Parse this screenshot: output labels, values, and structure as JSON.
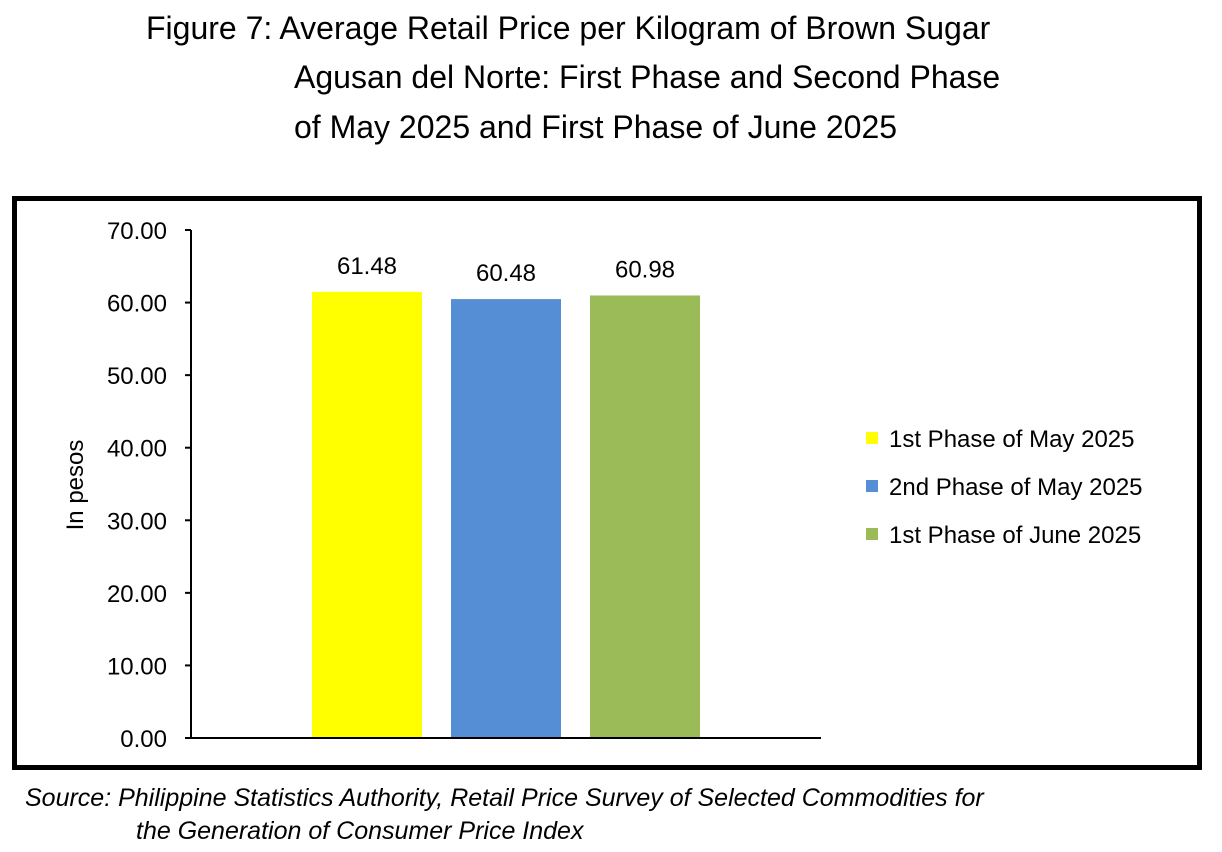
{
  "title": {
    "line1": "Figure 7: Average Retail Price per Kilogram of Brown Sugar",
    "line2": "Agusan del Norte: First Phase and Second Phase",
    "line3": "of May 2025 and First Phase of June 2025"
  },
  "source": {
    "line1": "Source: Philippine Statistics Authority, Retail Price Survey of Selected Commodities for",
    "line2": "the Generation of Consumer Price Index"
  },
  "chart_data": {
    "type": "bar",
    "categories": [
      ""
    ],
    "series": [
      {
        "name": "1st Phase of May 2025",
        "values": [
          61.48
        ],
        "color": "#FFFF00",
        "label": "61.48"
      },
      {
        "name": "2nd Phase of May 2025",
        "values": [
          60.48
        ],
        "color": "#558ED5",
        "label": "60.48"
      },
      {
        "name": "1st Phase of June 2025",
        "values": [
          60.98
        ],
        "color": "#9BBB59",
        "label": "60.98"
      }
    ],
    "ylabel": "In pesos",
    "ylim": [
      0,
      70
    ],
    "yticks": [
      "0.00",
      "10.00",
      "20.00",
      "30.00",
      "40.00",
      "50.00",
      "60.00",
      "70.00"
    ],
    "grid": false,
    "legend_position": "right"
  }
}
